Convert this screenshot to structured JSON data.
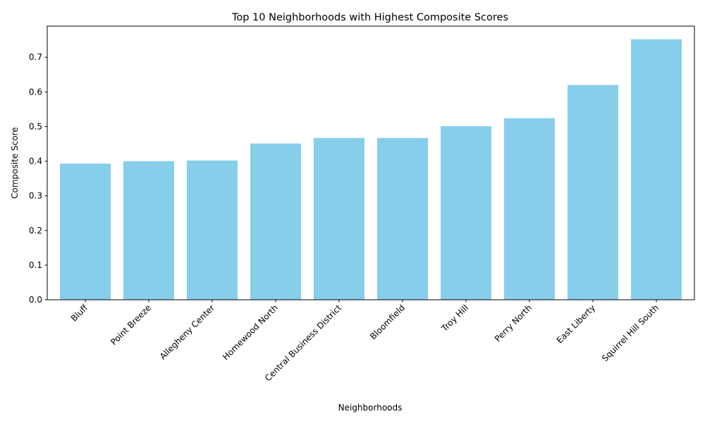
{
  "chart_data": {
    "type": "bar",
    "title": "Top 10 Neighborhoods with Highest Composite Scores",
    "xlabel": "Neighborhoods",
    "ylabel": "Composite Score",
    "categories": [
      "Bluff",
      "Point Breeze",
      "Allegheny Center",
      "Homewood North",
      "Central Business District",
      "Bloomfield",
      "Troy Hill",
      "Perry North",
      "East Liberty",
      "Squirrel Hill South"
    ],
    "values": [
      0.393,
      0.4,
      0.402,
      0.451,
      0.467,
      0.467,
      0.501,
      0.524,
      0.62,
      0.752
    ],
    "ylim": [
      0,
      0.79
    ],
    "yticks": [
      0.0,
      0.1,
      0.2,
      0.3,
      0.4,
      0.5,
      0.6,
      0.7
    ],
    "ytick_labels": [
      "0.0",
      "0.1",
      "0.2",
      "0.3",
      "0.4",
      "0.5",
      "0.6",
      "0.7"
    ],
    "bar_color": "#87CEEB",
    "grid": false,
    "legend": "none"
  }
}
